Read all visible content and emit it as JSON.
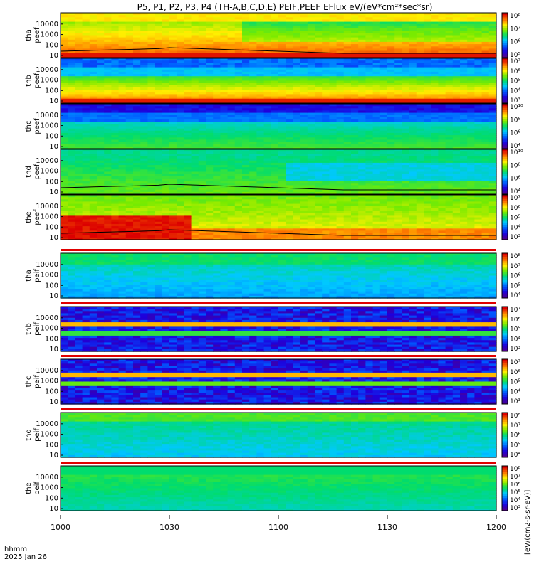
{
  "chart_data": {
    "type": "heatmap",
    "title": "P5, P1, P2, P3, P4 (TH-A,B,C,D,E) PEIF,PEEF EFlux eV/(eV*cm²*sec*sr)",
    "time_label": "hhmm",
    "date_label": "2025 Jan 26",
    "x_ticks": [
      "1000",
      "1030",
      "1100",
      "1130",
      "1200"
    ],
    "x_range": [
      "10:00",
      "12:00"
    ],
    "y_scale": "log",
    "y_ticks": [
      "10",
      "100",
      "1000",
      "10000"
    ],
    "colorbar_label": "[eV/(cm2-s-sr-eV)]",
    "colorbar_scale": "log",
    "colormap": "rainbow",
    "panels": [
      {
        "probe": "tha",
        "product": "peef",
        "ylabel": [
          "tha",
          "peef"
        ],
        "cb": [
          "10⁵",
          "10⁶",
          "10⁷",
          "10⁸"
        ],
        "line": true
      },
      {
        "probe": "thb",
        "product": "peef",
        "ylabel": [
          "thb",
          "peef"
        ],
        "cb": [
          "10³",
          "10⁴",
          "10⁵",
          "10⁶",
          "10⁷"
        ],
        "line": false
      },
      {
        "probe": "thc",
        "product": "peef",
        "ylabel": [
          "thc",
          "peef"
        ],
        "cb": [
          "10⁴",
          "10⁶",
          "10⁸",
          "10¹⁰"
        ],
        "line": false
      },
      {
        "probe": "thd",
        "product": "peef",
        "ylabel": [
          "thd",
          "peef"
        ],
        "cb": [
          "10⁴",
          "10⁶",
          "10⁸",
          "10¹⁰"
        ],
        "line": true
      },
      {
        "probe": "the",
        "product": "peef",
        "ylabel": [
          "the",
          "peef"
        ],
        "cb": [
          "10³",
          "10⁴",
          "10⁵",
          "10⁶",
          "10⁷"
        ],
        "line": true
      },
      {
        "probe": "tha",
        "product": "peif",
        "ylabel": [
          "tha",
          "peif"
        ],
        "cb": [
          "10⁴",
          "10⁵",
          "10⁶",
          "10⁷",
          "10⁸"
        ],
        "line": false
      },
      {
        "probe": "thb",
        "product": "peif",
        "ylabel": [
          "thb",
          "peif"
        ],
        "cb": [
          "10³",
          "10⁴",
          "10⁵",
          "10⁶",
          "10⁷"
        ],
        "line": false
      },
      {
        "probe": "thc",
        "product": "peif",
        "ylabel": [
          "thc",
          "peif"
        ],
        "cb": [
          "10³",
          "10⁴",
          "10⁵",
          "10⁶",
          "10⁷"
        ],
        "line": false
      },
      {
        "probe": "thd",
        "product": "peif",
        "ylabel": [
          "thd",
          "peif"
        ],
        "cb": [
          "10⁴",
          "10⁵",
          "10⁶",
          "10⁷",
          "10⁸"
        ],
        "line": false
      },
      {
        "probe": "the",
        "product": "peif",
        "ylabel": [
          "the",
          "peif"
        ],
        "cb": [
          "10³",
          "10⁴",
          "10⁵",
          "10⁶",
          "10⁷",
          "10⁸"
        ],
        "line": false
      }
    ]
  }
}
